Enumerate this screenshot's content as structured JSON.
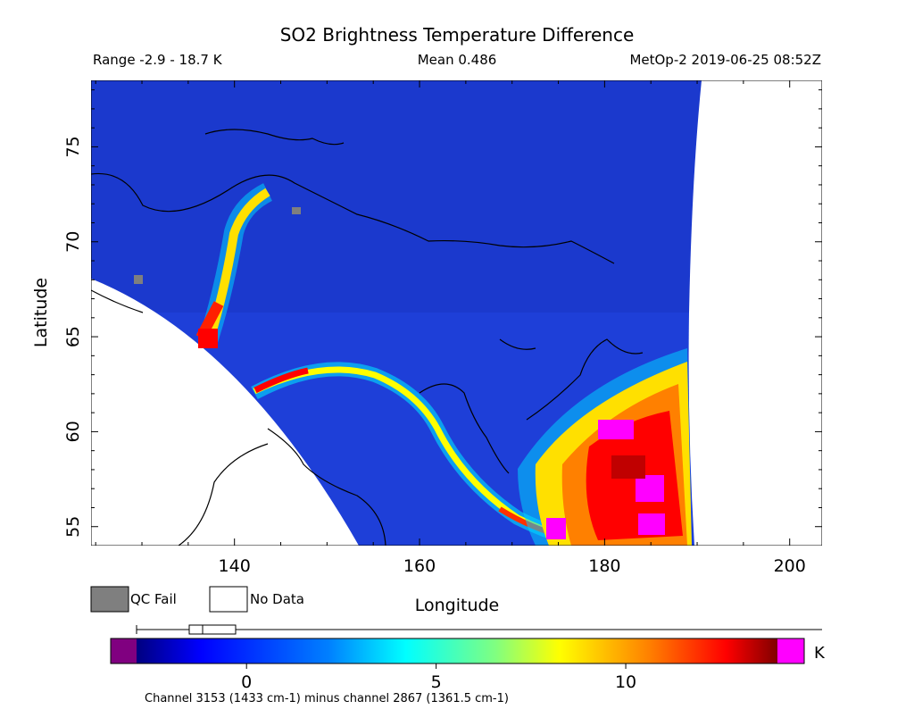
{
  "chart_data": {
    "type": "heatmap",
    "title": "SO2 Brightness Temperature Difference",
    "header": {
      "range": "Range -2.9 - 18.7 K",
      "mean": "Mean 0.486",
      "source": "MetOp-2 2019-06-25 08:52Z"
    },
    "xlabel": "Longitude",
    "ylabel": "Latitude",
    "xlim": [
      124.5,
      203.5
    ],
    "ylim": [
      54,
      78.5
    ],
    "x_ticks": [
      140,
      160,
      180,
      200
    ],
    "y_ticks": [
      55,
      60,
      65,
      70,
      75
    ],
    "legend": {
      "qc_fail": "QC Fail",
      "no_data": "No Data",
      "qc_fail_color": "#7f7f7f",
      "no_data_color": "#ffffff"
    },
    "colorbar": {
      "unit": "K",
      "ticks": [
        0,
        5,
        10
      ],
      "range": [
        -2.9,
        14
      ],
      "under_color": "#800080",
      "over_color": "#ff00ff",
      "slider_range": [
        -1.5,
        0
      ]
    },
    "footnote": "Channel 3153 (1433 cm-1) minus channel 2867 (1361.5 cm-1)",
    "colors": {
      "background_field": "#1e3fd8",
      "plume_high": "#ff0000",
      "plume_max": "#ff00ff"
    }
  }
}
